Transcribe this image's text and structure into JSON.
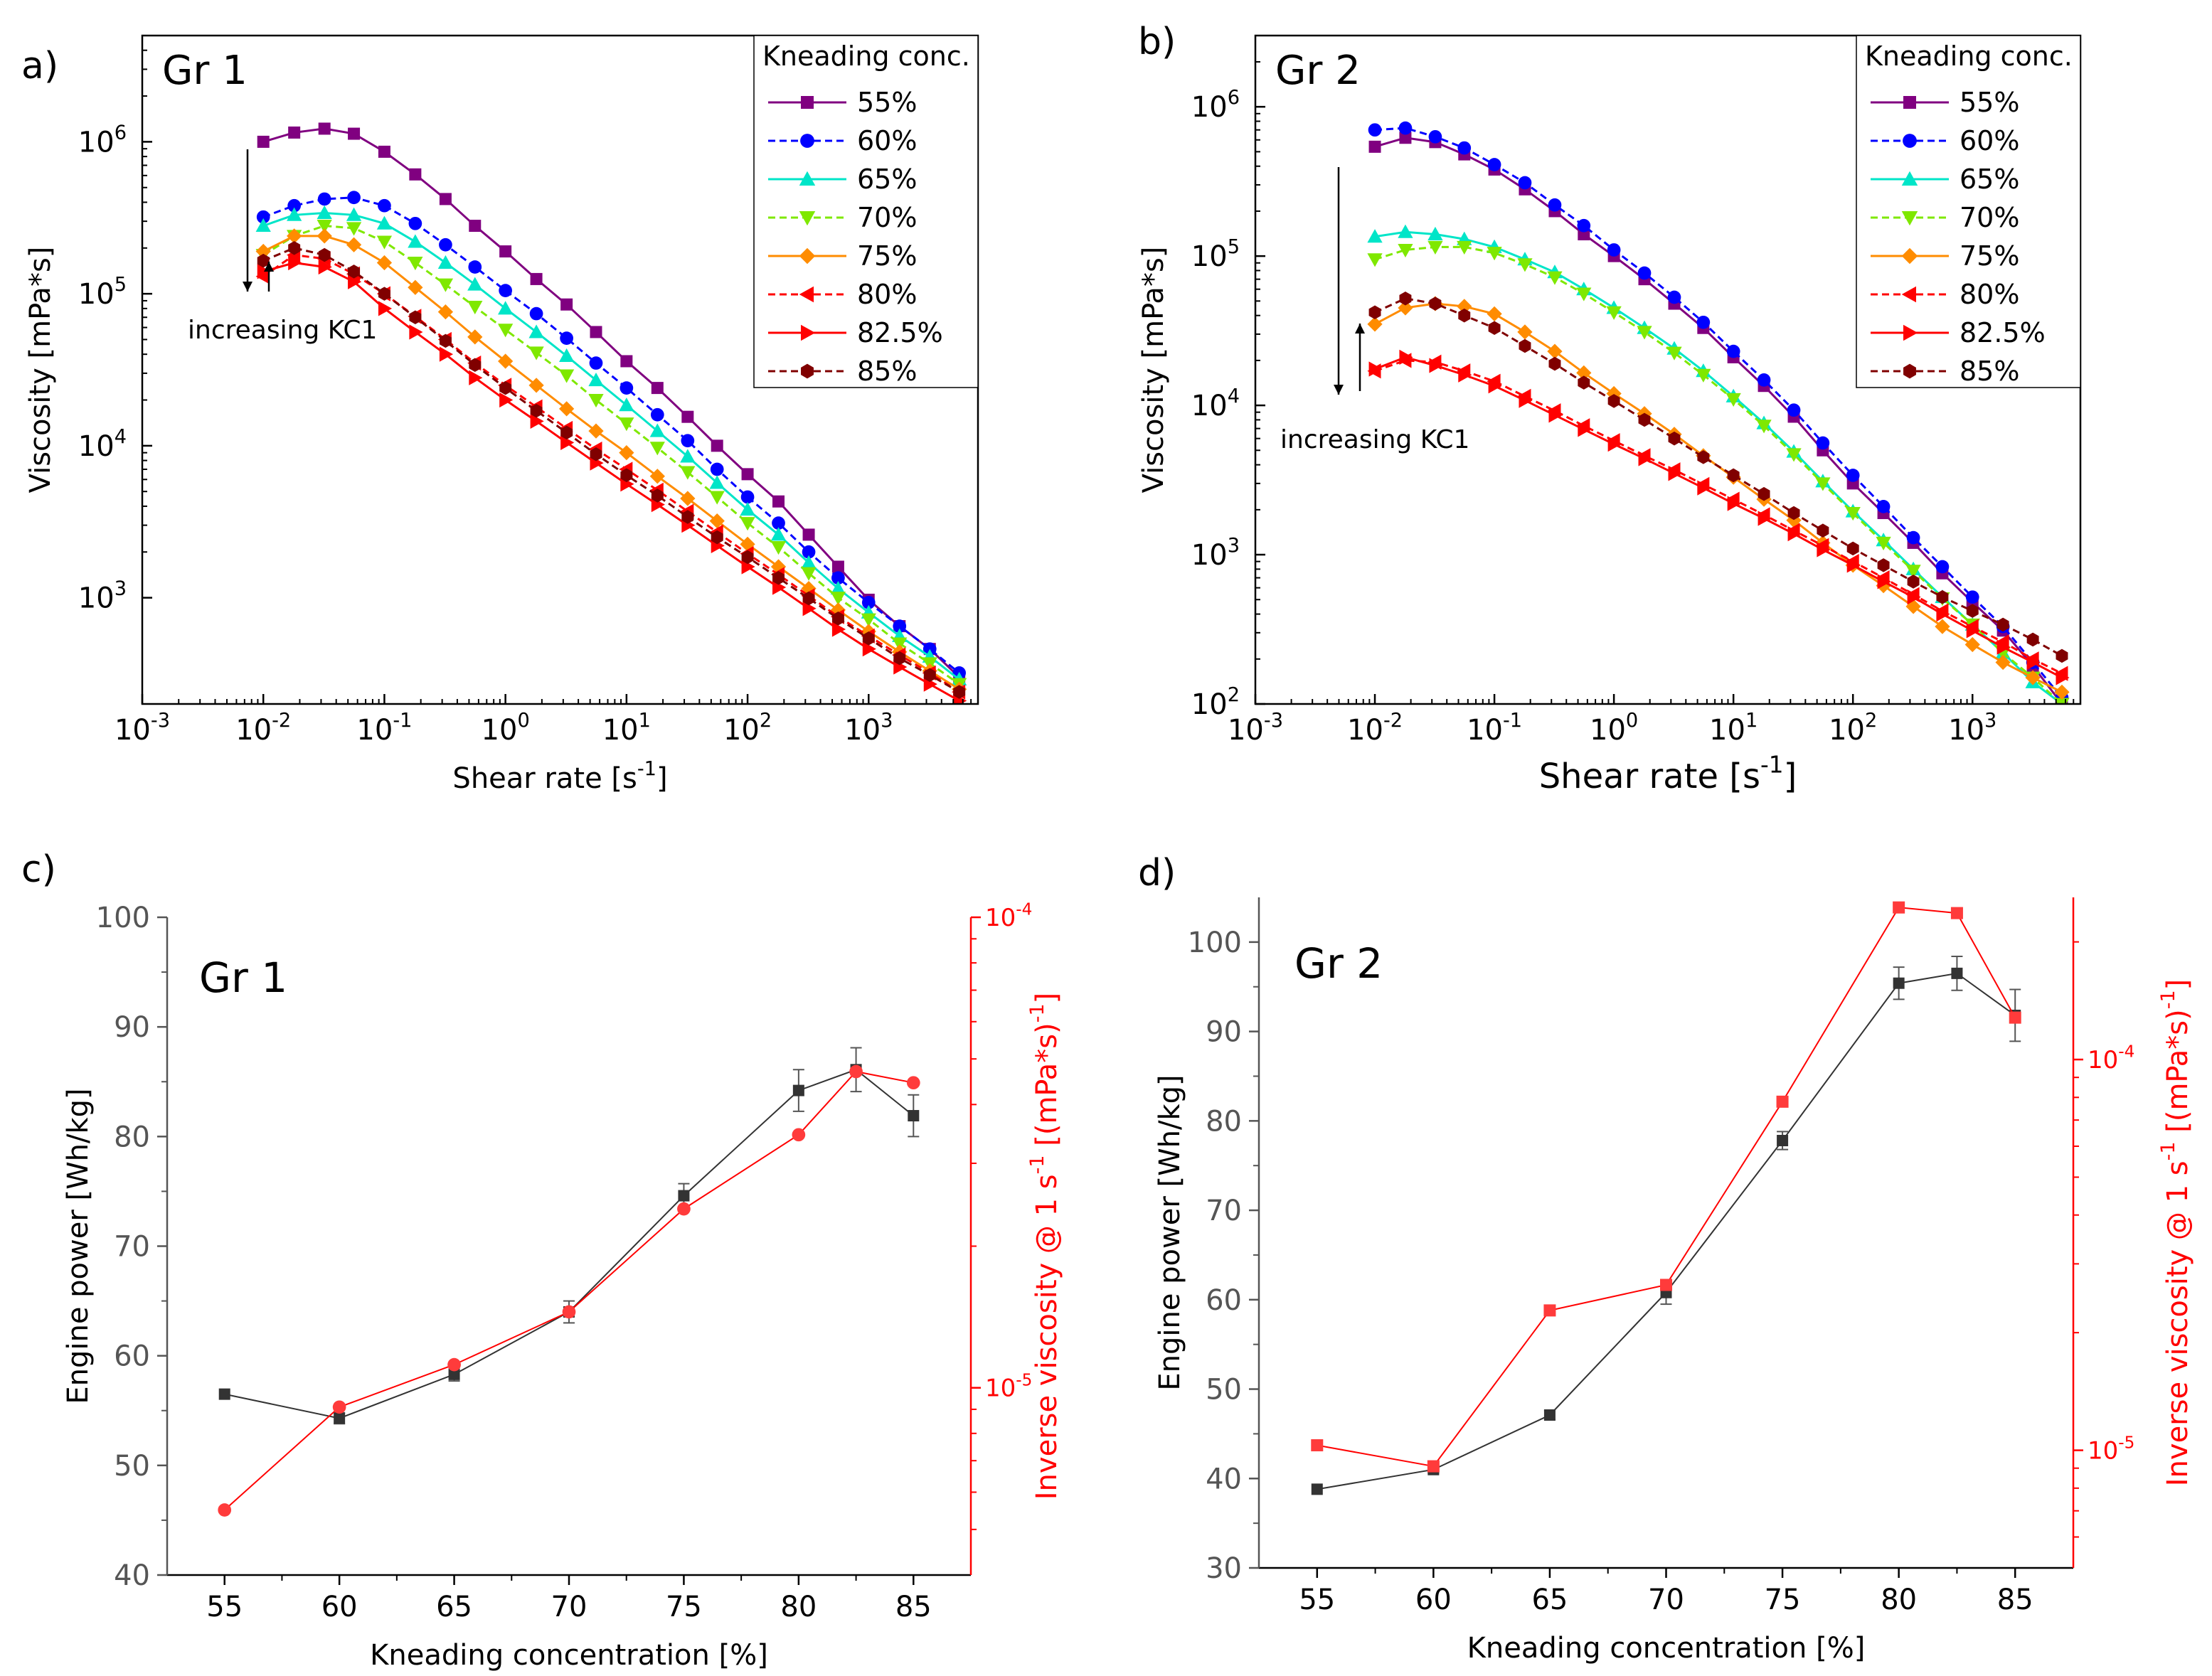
{
  "chart_data": [
    {
      "panel": "a)",
      "type": "line",
      "tag": "Gr 1",
      "xlabel": "Shear rate [s",
      "xlabel_sup": "-1",
      "xlabel_end": "]",
      "ylabel": "Viscosity [mPa*s]",
      "xscale": "log",
      "yscale": "log",
      "xlim": [
        0.001,
        8000
      ],
      "ylim": [
        200,
        5000000
      ],
      "xticks": [
        {
          "base": "10",
          "exp": "-3"
        },
        {
          "base": "10",
          "exp": "-2"
        },
        {
          "base": "10",
          "exp": "-1"
        },
        {
          "base": "10",
          "exp": "0"
        },
        {
          "base": "10",
          "exp": "1"
        },
        {
          "base": "10",
          "exp": "2"
        },
        {
          "base": "10",
          "exp": "3"
        }
      ],
      "yticks": [
        {
          "base": "10",
          "exp": "3"
        },
        {
          "base": "10",
          "exp": "4"
        },
        {
          "base": "10",
          "exp": "5"
        },
        {
          "base": "10",
          "exp": "6"
        }
      ],
      "legend_title": "Kneading conc.",
      "legend_location": "top-right",
      "annotation": "increasing KC1",
      "x": [
        0.01,
        0.018,
        0.032,
        0.056,
        0.1,
        0.18,
        0.32,
        0.56,
        1,
        1.8,
        3.2,
        5.6,
        10,
        18,
        32,
        56,
        100,
        180,
        320,
        560,
        1000,
        1800,
        3200,
        5600
      ],
      "series": [
        {
          "name": "55%",
          "color": "#800080",
          "marker": "square",
          "values": [
            1000000,
            1150000,
            1220000,
            1130000,
            860000,
            610000,
            420000,
            280000,
            190000,
            125000,
            85000,
            56000,
            36000,
            24000,
            15500,
            10000,
            6500,
            4300,
            2600,
            1600,
            970,
            650,
            460,
            300
          ]
        },
        {
          "name": "60%",
          "color": "#0000ff",
          "marker": "circle",
          "values": [
            320000,
            380000,
            420000,
            430000,
            380000,
            290000,
            210000,
            150000,
            105000,
            74000,
            51000,
            35000,
            24000,
            16000,
            10800,
            7000,
            4600,
            3100,
            2000,
            1350,
            930,
            650,
            460,
            320
          ]
        },
        {
          "name": "65%",
          "color": "#00e5c8",
          "marker": "triangle-up",
          "values": [
            280000,
            330000,
            340000,
            330000,
            290000,
            220000,
            160000,
            115000,
            80000,
            56000,
            39000,
            27000,
            18500,
            12500,
            8500,
            5700,
            3800,
            2600,
            1700,
            1150,
            800,
            560,
            410,
            290
          ]
        },
        {
          "name": "70%",
          "color": "#7fe800",
          "marker": "triangle-down",
          "values": [
            180000,
            240000,
            280000,
            270000,
            220000,
            160000,
            115000,
            82000,
            58000,
            41000,
            29000,
            20000,
            14000,
            9700,
            6700,
            4600,
            3100,
            2150,
            1450,
            1000,
            720,
            500,
            370,
            270
          ]
        },
        {
          "name": "75%",
          "color": "#ff8c00",
          "marker": "diamond",
          "values": [
            190000,
            240000,
            240000,
            210000,
            160000,
            110000,
            76000,
            52000,
            36000,
            25000,
            17500,
            12500,
            9000,
            6300,
            4500,
            3200,
            2250,
            1600,
            1150,
            830,
            600,
            440,
            330,
            250
          ]
        },
        {
          "name": "80%",
          "color": "#ff0000",
          "marker": "triangle-left",
          "values": [
            130000,
            180000,
            170000,
            135000,
            100000,
            71000,
            50000,
            35000,
            25000,
            18000,
            13000,
            9500,
            7000,
            5100,
            3700,
            2700,
            1950,
            1420,
            1030,
            750,
            560,
            420,
            320,
            240
          ]
        },
        {
          "name": "82.5%",
          "color": "#ff0000",
          "marker": "triangle-right",
          "values": [
            140000,
            160000,
            150000,
            120000,
            80000,
            56000,
            40000,
            28000,
            20000,
            14500,
            10500,
            7700,
            5600,
            4100,
            3000,
            2200,
            1600,
            1170,
            850,
            620,
            460,
            350,
            270,
            210
          ]
        },
        {
          "name": "85%",
          "color": "#800000",
          "marker": "hexagon",
          "values": [
            165000,
            200000,
            180000,
            140000,
            100000,
            70000,
            49000,
            34000,
            24000,
            17000,
            12200,
            8800,
            6400,
            4700,
            3400,
            2500,
            1850,
            1350,
            990,
            730,
            540,
            400,
            310,
            240
          ]
        }
      ]
    },
    {
      "panel": "b)",
      "type": "line",
      "tag": "Gr 2",
      "xlabel": "Shear rate [s",
      "xlabel_sup": "-1",
      "xlabel_end": "]",
      "ylabel": "Viscosity [mPa*s]",
      "xscale": "log",
      "yscale": "log",
      "xlim": [
        0.001,
        8000
      ],
      "ylim": [
        100,
        3000000
      ],
      "xticks": [
        {
          "base": "10",
          "exp": "-3"
        },
        {
          "base": "10",
          "exp": "-2"
        },
        {
          "base": "10",
          "exp": "-1"
        },
        {
          "base": "10",
          "exp": "0"
        },
        {
          "base": "10",
          "exp": "1"
        },
        {
          "base": "10",
          "exp": "2"
        },
        {
          "base": "10",
          "exp": "3"
        }
      ],
      "yticks": [
        {
          "base": "10",
          "exp": "2"
        },
        {
          "base": "10",
          "exp": "3"
        },
        {
          "base": "10",
          "exp": "4"
        },
        {
          "base": "10",
          "exp": "5"
        },
        {
          "base": "10",
          "exp": "6"
        }
      ],
      "legend_title": "Kneading conc.",
      "legend_location": "top-right",
      "annotation": "increasing KC1",
      "x": [
        0.01,
        0.018,
        0.032,
        0.056,
        0.1,
        0.18,
        0.32,
        0.56,
        1,
        1.8,
        3.2,
        5.6,
        10,
        18,
        32,
        56,
        100,
        180,
        320,
        560,
        1000,
        1800,
        3200,
        5600
      ],
      "series": [
        {
          "name": "55%",
          "color": "#800080",
          "marker": "square",
          "values": [
            540000,
            620000,
            580000,
            480000,
            380000,
            280000,
            200000,
            140000,
            100000,
            70000,
            48000,
            33000,
            21000,
            13500,
            8400,
            5000,
            3000,
            1900,
            1200,
            750,
            480,
            310,
            180,
            100
          ]
        },
        {
          "name": "60%",
          "color": "#0000ff",
          "marker": "circle",
          "values": [
            700000,
            720000,
            630000,
            530000,
            410000,
            310000,
            220000,
            160000,
            110000,
            77000,
            53000,
            36000,
            23000,
            14800,
            9300,
            5600,
            3400,
            2100,
            1300,
            830,
            520,
            330,
            190,
            110
          ]
        },
        {
          "name": "65%",
          "color": "#00e5c8",
          "marker": "triangle-up",
          "values": [
            135000,
            145000,
            140000,
            130000,
            115000,
            95000,
            78000,
            60000,
            45000,
            33000,
            24000,
            17000,
            11500,
            7600,
            4900,
            3100,
            1950,
            1250,
            800,
            520,
            340,
            220,
            140,
            100
          ]
        },
        {
          "name": "70%",
          "color": "#7fe800",
          "marker": "triangle-down",
          "values": [
            95000,
            110000,
            115000,
            115000,
            105000,
            88000,
            72000,
            56000,
            42000,
            31000,
            22500,
            16000,
            11000,
            7300,
            4700,
            3000,
            1900,
            1200,
            780,
            510,
            340,
            220,
            150,
            100
          ]
        },
        {
          "name": "75%",
          "color": "#ff8c00",
          "marker": "diamond",
          "values": [
            35000,
            45000,
            48000,
            46000,
            41000,
            31000,
            23000,
            16500,
            12000,
            8800,
            6400,
            4600,
            3300,
            2350,
            1700,
            1200,
            850,
            620,
            450,
            330,
            250,
            190,
            150,
            120
          ]
        },
        {
          "name": "80%",
          "color": "#ff0000",
          "marker": "triangle-left",
          "values": [
            17000,
            20000,
            19500,
            17000,
            14500,
            11500,
            9200,
            7300,
            5800,
            4600,
            3700,
            2950,
            2350,
            1850,
            1450,
            1150,
            900,
            700,
            540,
            420,
            330,
            260,
            200,
            160
          ]
        },
        {
          "name": "82.5%",
          "color": "#ff0000",
          "marker": "triangle-right",
          "values": [
            17500,
            21000,
            18500,
            16000,
            13500,
            10800,
            8600,
            6900,
            5500,
            4400,
            3500,
            2800,
            2200,
            1750,
            1380,
            1080,
            850,
            660,
            520,
            400,
            310,
            240,
            190,
            150
          ]
        },
        {
          "name": "85%",
          "color": "#800000",
          "marker": "hexagon",
          "values": [
            42000,
            52000,
            48000,
            40000,
            33000,
            25000,
            19000,
            14200,
            10700,
            8000,
            6000,
            4500,
            3400,
            2550,
            1900,
            1450,
            1100,
            850,
            660,
            520,
            420,
            340,
            270,
            210
          ]
        }
      ]
    },
    {
      "panel": "c)",
      "type": "line",
      "tag": "Gr 1",
      "xlabel": "Kneading concentration [%]",
      "ylabel": "Engine power [Wh/kg]",
      "y2label": "Inverse viscosity @ 1 s",
      "y2label_sup1": "-1",
      "y2label_mid": " [(mPa*s)",
      "y2label_sup2": "-1",
      "y2label_end": "]",
      "x": [
        55,
        60,
        65,
        70,
        75,
        80,
        82.5,
        85
      ],
      "xticks": [
        "55",
        "60",
        "65",
        "70",
        "75",
        "80",
        "85"
      ],
      "xlim": [
        52.5,
        87.5
      ],
      "ylim": [
        40,
        100
      ],
      "yticks": [
        "40",
        "50",
        "60",
        "70",
        "80",
        "90",
        "100"
      ],
      "y2scale": "log",
      "y2lim": [
        4e-06,
        0.0001
      ],
      "y2ticks": [
        {
          "base": "10",
          "exp": "-5",
          "value": 1e-05
        },
        {
          "base": "10",
          "exp": "-4",
          "value": 0.0001
        }
      ],
      "series": [
        {
          "name": "Engine power",
          "axis": "left",
          "color": "#333333",
          "marker": "square",
          "values": [
            56.5,
            54.3,
            58.3,
            64,
            74.6,
            84.2,
            86.1,
            81.9
          ],
          "errors": [
            0,
            0.5,
            0.6,
            1.0,
            1.1,
            1.9,
            2.0,
            1.9
          ]
        },
        {
          "name": "Inverse viscosity",
          "axis": "right",
          "color": "#ff0000",
          "marker": "circle",
          "values": [
            5.5e-06,
            9.1e-06,
            1.12e-05,
            1.45e-05,
            2.4e-05,
            3.45e-05,
            4.7e-05,
            4.45e-05
          ]
        }
      ]
    },
    {
      "panel": "d)",
      "type": "line",
      "tag": "Gr 2",
      "xlabel": "Kneading concentration [%]",
      "ylabel": "Engine power [Wh/kg]",
      "y2label": "Inverse viscosity @ 1 s",
      "y2label_sup1": "-1",
      "y2label_mid": " [(mPa*s)",
      "y2label_sup2": "-1",
      "y2label_end": "]",
      "x": [
        55,
        60,
        65,
        70,
        75,
        80,
        82.5,
        85
      ],
      "xticks": [
        "55",
        "60",
        "65",
        "70",
        "75",
        "80",
        "85"
      ],
      "xlim": [
        52.5,
        87.5
      ],
      "ylim": [
        30,
        105
      ],
      "yticks": [
        "30",
        "40",
        "50",
        "60",
        "70",
        "80",
        "90",
        "100"
      ],
      "y2scale": "log",
      "y2lim": [
        5e-06,
        0.00026
      ],
      "y2ticks": [
        {
          "base": "10",
          "exp": "-5",
          "value": 1e-05
        },
        {
          "base": "10",
          "exp": "-4",
          "value": 0.0001
        }
      ],
      "series": [
        {
          "name": "Engine power",
          "axis": "left",
          "color": "#333333",
          "marker": "square",
          "values": [
            38.8,
            41,
            47.1,
            60.8,
            77.8,
            95.4,
            96.5,
            91.8
          ],
          "errors": [
            0,
            0.4,
            0.5,
            1.3,
            1.0,
            1.8,
            1.9,
            2.9
          ]
        },
        {
          "name": "Inverse viscosity",
          "axis": "right",
          "color": "#ff0000",
          "marker": "square",
          "values": [
            1.03e-05,
            9.1e-06,
            2.28e-05,
            2.65e-05,
            7.8e-05,
            0.000245,
            0.000237,
            0.000128
          ]
        }
      ]
    }
  ]
}
